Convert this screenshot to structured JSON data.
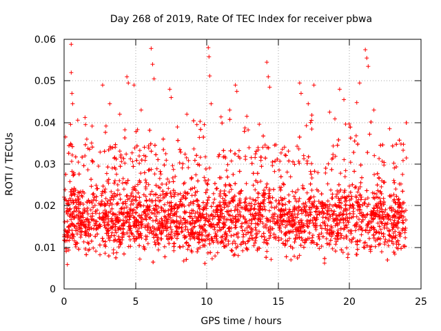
{
  "chart_data": {
    "type": "scatter",
    "title": "Day 268 of 2019, Rate Of TEC Index for receiver pbwa",
    "xlabel": "GPS time / hours",
    "ylabel": "ROTI / TECUs",
    "xlim": [
      0,
      25
    ],
    "ylim": [
      0,
      0.06
    ],
    "x_ticks": [
      "0",
      "5",
      "10",
      "15",
      "20",
      "25"
    ],
    "y_ticks": [
      "0",
      "0.01",
      "0.02",
      "0.03",
      "0.04",
      "0.05",
      "0.06"
    ],
    "x_tick_values": [
      0,
      5,
      10,
      15,
      20,
      25
    ],
    "y_tick_values": [
      0,
      0.01,
      0.02,
      0.03,
      0.04,
      0.05,
      0.06
    ],
    "grid": true,
    "marker": "+",
    "series": [
      {
        "name": "ROTI",
        "color": "#ff0000",
        "x_range": [
          0,
          24
        ],
        "baseline_range": [
          0.005,
          0.025
        ],
        "points": [
          {
            "x": 0.5,
            "y": 0.0588
          },
          {
            "x": 0.5,
            "y": 0.052
          },
          {
            "x": 0.55,
            "y": 0.047
          },
          {
            "x": 0.6,
            "y": 0.0445
          },
          {
            "x": 1.5,
            "y": 0.0395
          },
          {
            "x": 2.7,
            "y": 0.049
          },
          {
            "x": 3.2,
            "y": 0.0445
          },
          {
            "x": 3.9,
            "y": 0.042
          },
          {
            "x": 4.4,
            "y": 0.051
          },
          {
            "x": 4.5,
            "y": 0.0495
          },
          {
            "x": 4.9,
            "y": 0.049
          },
          {
            "x": 5.4,
            "y": 0.043
          },
          {
            "x": 6.1,
            "y": 0.0578
          },
          {
            "x": 6.2,
            "y": 0.054
          },
          {
            "x": 6.3,
            "y": 0.0505
          },
          {
            "x": 7.4,
            "y": 0.048
          },
          {
            "x": 7.5,
            "y": 0.046
          },
          {
            "x": 8.6,
            "y": 0.042
          },
          {
            "x": 9.3,
            "y": 0.0395
          },
          {
            "x": 10.1,
            "y": 0.058
          },
          {
            "x": 10.15,
            "y": 0.0558
          },
          {
            "x": 10.2,
            "y": 0.0512
          },
          {
            "x": 10.3,
            "y": 0.0445
          },
          {
            "x": 11.6,
            "y": 0.043
          },
          {
            "x": 12.0,
            "y": 0.049
          },
          {
            "x": 12.1,
            "y": 0.0475
          },
          {
            "x": 12.8,
            "y": 0.0415
          },
          {
            "x": 14.2,
            "y": 0.0545
          },
          {
            "x": 14.3,
            "y": 0.051
          },
          {
            "x": 14.4,
            "y": 0.0485
          },
          {
            "x": 16.5,
            "y": 0.0495
          },
          {
            "x": 16.6,
            "y": 0.047
          },
          {
            "x": 17.1,
            "y": 0.0445
          },
          {
            "x": 17.5,
            "y": 0.049
          },
          {
            "x": 18.6,
            "y": 0.0425
          },
          {
            "x": 19.3,
            "y": 0.048
          },
          {
            "x": 19.6,
            "y": 0.0455
          },
          {
            "x": 20.5,
            "y": 0.0448
          },
          {
            "x": 20.7,
            "y": 0.0495
          },
          {
            "x": 21.1,
            "y": 0.0575
          },
          {
            "x": 21.2,
            "y": 0.0555
          },
          {
            "x": 21.3,
            "y": 0.0535
          },
          {
            "x": 21.7,
            "y": 0.043
          },
          {
            "x": 22.8,
            "y": 0.0385
          }
        ]
      }
    ]
  }
}
